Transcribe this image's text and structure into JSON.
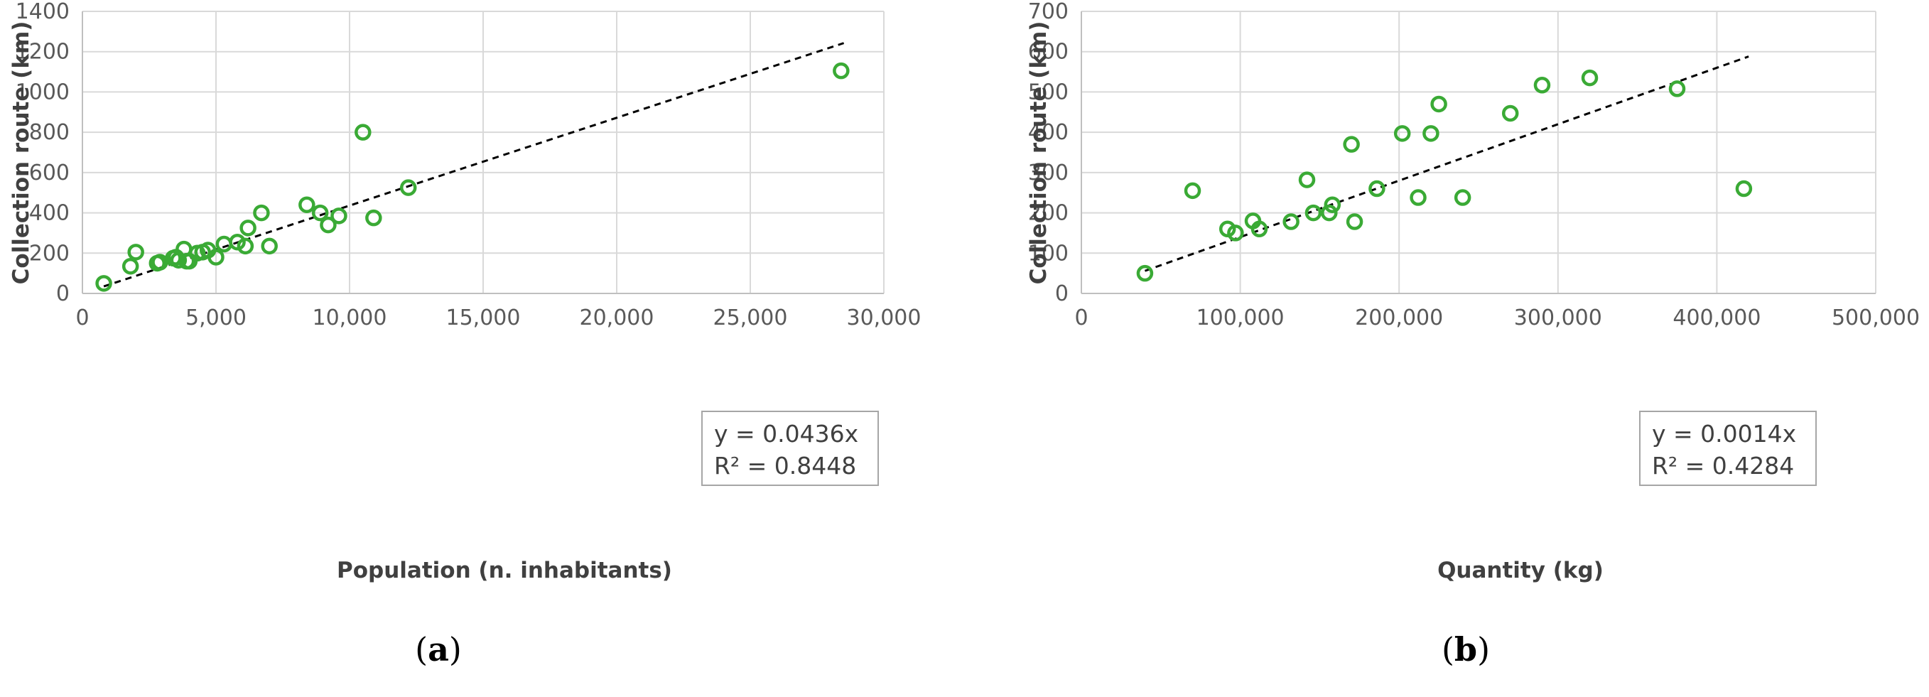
{
  "colors": {
    "marker": "#3aaa35",
    "grid": "#d9d9d9",
    "axis": "#bfbfbf",
    "trend": "#000000",
    "text": "#404040"
  },
  "chart_data": [
    {
      "type": "scatter",
      "panel": "(a)",
      "panel_open": "(",
      "panel_letter": "a",
      "panel_close": ")",
      "xlabel": "Population (n. inhabitants)",
      "ylabel": "Collection route (km)",
      "xlim": [
        0,
        30000
      ],
      "ylim": [
        0,
        1400
      ],
      "xticks": [
        0,
        5000,
        10000,
        15000,
        20000,
        25000,
        30000
      ],
      "xtick_labels": [
        "0",
        "5,000",
        "10,000",
        "15,000",
        "20,000",
        "25,000",
        "30,000"
      ],
      "yticks": [
        0,
        200,
        400,
        600,
        800,
        1000,
        1200,
        1400
      ],
      "ytick_labels": [
        "0",
        "200",
        "400",
        "600",
        "800",
        "1000",
        "1200",
        "1400"
      ],
      "grid": true,
      "trendline": {
        "slope": 0.0436,
        "x_range": [
          800,
          28500
        ],
        "style": "dashed"
      },
      "equation": "y = 0.0436x",
      "r2": "R² = 0.8448",
      "points": [
        [
          800,
          50
        ],
        [
          1800,
          135
        ],
        [
          2000,
          205
        ],
        [
          2800,
          150
        ],
        [
          2900,
          155
        ],
        [
          3400,
          175
        ],
        [
          3500,
          180
        ],
        [
          3600,
          165
        ],
        [
          3800,
          220
        ],
        [
          3900,
          160
        ],
        [
          4000,
          160
        ],
        [
          4300,
          200
        ],
        [
          4500,
          205
        ],
        [
          4700,
          215
        ],
        [
          5000,
          180
        ],
        [
          5300,
          245
        ],
        [
          5800,
          255
        ],
        [
          6100,
          235
        ],
        [
          6200,
          325
        ],
        [
          6700,
          400
        ],
        [
          7000,
          235
        ],
        [
          8400,
          440
        ],
        [
          8900,
          400
        ],
        [
          9200,
          340
        ],
        [
          9600,
          385
        ],
        [
          10500,
          800
        ],
        [
          10900,
          375
        ],
        [
          12200,
          525
        ],
        [
          28400,
          1105
        ]
      ]
    },
    {
      "type": "scatter",
      "panel": "(b)",
      "panel_open": "(",
      "panel_letter": "b",
      "panel_close": ")",
      "xlabel": "Quantity (kg)",
      "ylabel": "Collection route (km)",
      "xlim": [
        0,
        500000
      ],
      "ylim": [
        0,
        700
      ],
      "xticks": [
        0,
        100000,
        200000,
        300000,
        400000,
        500000
      ],
      "xtick_labels": [
        "0",
        "100,000",
        "200,000",
        "300,000",
        "400,000",
        "500,000"
      ],
      "yticks": [
        0,
        100,
        200,
        300,
        400,
        500,
        600,
        700
      ],
      "ytick_labels": [
        "0",
        "100",
        "200",
        "300",
        "400",
        "500",
        "600",
        "700"
      ],
      "grid": true,
      "trendline": {
        "slope": 0.0014,
        "x_range": [
          40000,
          420000
        ],
        "style": "dashed"
      },
      "equation": "y = 0.0014x",
      "r2": "R² = 0.4284",
      "points": [
        [
          40000,
          50
        ],
        [
          70000,
          255
        ],
        [
          92000,
          160
        ],
        [
          97000,
          150
        ],
        [
          108000,
          180
        ],
        [
          112000,
          160
        ],
        [
          132000,
          178
        ],
        [
          142000,
          282
        ],
        [
          146000,
          200
        ],
        [
          156000,
          200
        ],
        [
          158000,
          220
        ],
        [
          170000,
          370
        ],
        [
          172000,
          178
        ],
        [
          186000,
          260
        ],
        [
          202000,
          397
        ],
        [
          212000,
          238
        ],
        [
          220000,
          397
        ],
        [
          225000,
          470
        ],
        [
          240000,
          238
        ],
        [
          270000,
          447
        ],
        [
          290000,
          517
        ],
        [
          320000,
          535
        ],
        [
          375000,
          508
        ],
        [
          417000,
          260
        ]
      ]
    }
  ]
}
